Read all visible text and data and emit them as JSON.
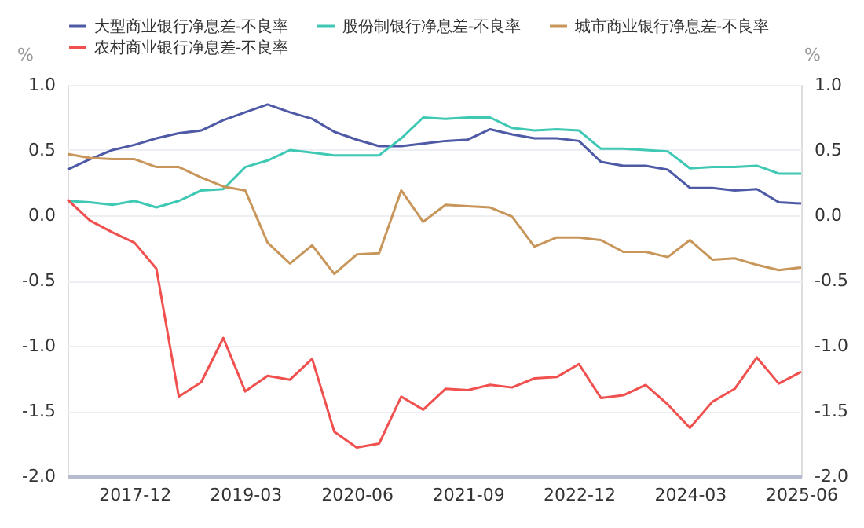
{
  "chart_data": {
    "type": "line",
    "x": [
      "2017-03",
      "2017-06",
      "2017-09",
      "2017-12",
      "2018-03",
      "2018-06",
      "2018-09",
      "2018-12",
      "2019-03",
      "2019-06",
      "2019-09",
      "2019-12",
      "2020-03",
      "2020-06",
      "2020-09",
      "2020-12",
      "2021-03",
      "2021-06",
      "2021-09",
      "2021-12",
      "2022-03",
      "2022-06",
      "2022-09",
      "2022-12",
      "2023-03",
      "2023-06",
      "2023-09",
      "2023-12",
      "2024-03",
      "2024-06",
      "2024-09",
      "2024-12",
      "2025-03",
      "2025-06"
    ],
    "series": [
      {
        "name": "大型商业银行净息差-不良率",
        "color": "#4e5aa6",
        "values": [
          0.35,
          0.43,
          0.5,
          0.54,
          0.59,
          0.63,
          0.65,
          0.73,
          0.79,
          0.85,
          0.79,
          0.74,
          0.64,
          0.58,
          0.53,
          0.53,
          0.55,
          0.57,
          0.58,
          0.66,
          0.62,
          0.59,
          0.59,
          0.57,
          0.41,
          0.38,
          0.38,
          0.35,
          0.21,
          0.21,
          0.19,
          0.2,
          0.1,
          0.09
        ]
      },
      {
        "name": "股份制银行净息差-不良率",
        "color": "#3fc8b4",
        "values": [
          0.11,
          0.1,
          0.08,
          0.11,
          0.06,
          0.11,
          0.19,
          0.2,
          0.37,
          0.42,
          0.5,
          0.48,
          0.46,
          0.46,
          0.46,
          0.59,
          0.75,
          0.74,
          0.75,
          0.75,
          0.67,
          0.65,
          0.66,
          0.65,
          0.51,
          0.51,
          0.5,
          0.49,
          0.36,
          0.37,
          0.37,
          0.38,
          0.32,
          0.32
        ]
      },
      {
        "name": "城市商业银行净息差-不良率",
        "color": "#c8965a",
        "values": [
          0.47,
          0.44,
          0.43,
          0.43,
          0.37,
          0.37,
          0.29,
          0.22,
          0.19,
          -0.21,
          -0.37,
          -0.23,
          -0.45,
          -0.3,
          -0.29,
          0.19,
          -0.05,
          0.08,
          0.07,
          0.06,
          -0.01,
          -0.24,
          -0.17,
          -0.17,
          -0.19,
          -0.28,
          -0.28,
          -0.32,
          -0.19,
          -0.34,
          -0.33,
          -0.38,
          -0.42,
          -0.4
        ]
      },
      {
        "name": "农村商业银行净息差-不良率",
        "color": "#f0504e",
        "values": [
          0.12,
          -0.04,
          -0.13,
          -0.21,
          -0.41,
          -1.39,
          -1.28,
          -0.94,
          -1.35,
          -1.23,
          -1.26,
          -1.1,
          -1.66,
          -1.78,
          -1.75,
          -1.39,
          -1.49,
          -1.33,
          -1.34,
          -1.3,
          -1.32,
          -1.25,
          -1.24,
          -1.14,
          -1.4,
          -1.38,
          -1.3,
          -1.45,
          -1.63,
          -1.43,
          -1.33,
          -1.09,
          -1.29,
          -1.2
        ]
      }
    ],
    "xlim": [
      "2017-03",
      "2025-06"
    ],
    "xticks": [
      "2017-12",
      "2019-03",
      "2020-06",
      "2021-09",
      "2022-12",
      "2024-03",
      "2025-06"
    ],
    "ylabel": "%",
    "y2label": "%",
    "ylim": [
      -2.0,
      1.0
    ],
    "yticks": [
      {
        "value": -2.0,
        "label": "-2.0"
      },
      {
        "value": -1.5,
        "label": "-1.5"
      },
      {
        "value": -1.0,
        "label": "-1.0"
      },
      {
        "value": -0.5,
        "label": "-0.5"
      },
      {
        "value": 0.0,
        "label": "0.0"
      },
      {
        "value": 0.5,
        "label": "0.5"
      },
      {
        "value": 1.0,
        "label": "1.0"
      }
    ],
    "y2lim": [
      -2.0,
      1.0
    ],
    "y2ticks": [
      {
        "value": -2.0,
        "label": "-2.0"
      },
      {
        "value": -1.5,
        "label": "-1.5"
      },
      {
        "value": -1.0,
        "label": "-1.0"
      },
      {
        "value": -0.5,
        "label": "-0.5"
      },
      {
        "value": 0.0,
        "label": "0.0"
      },
      {
        "value": 0.5,
        "label": "0.5"
      },
      {
        "value": 1.0,
        "label": "1.0"
      }
    ],
    "grid": "y",
    "legend": "top",
    "marker": "none",
    "line_style": "solid"
  }
}
